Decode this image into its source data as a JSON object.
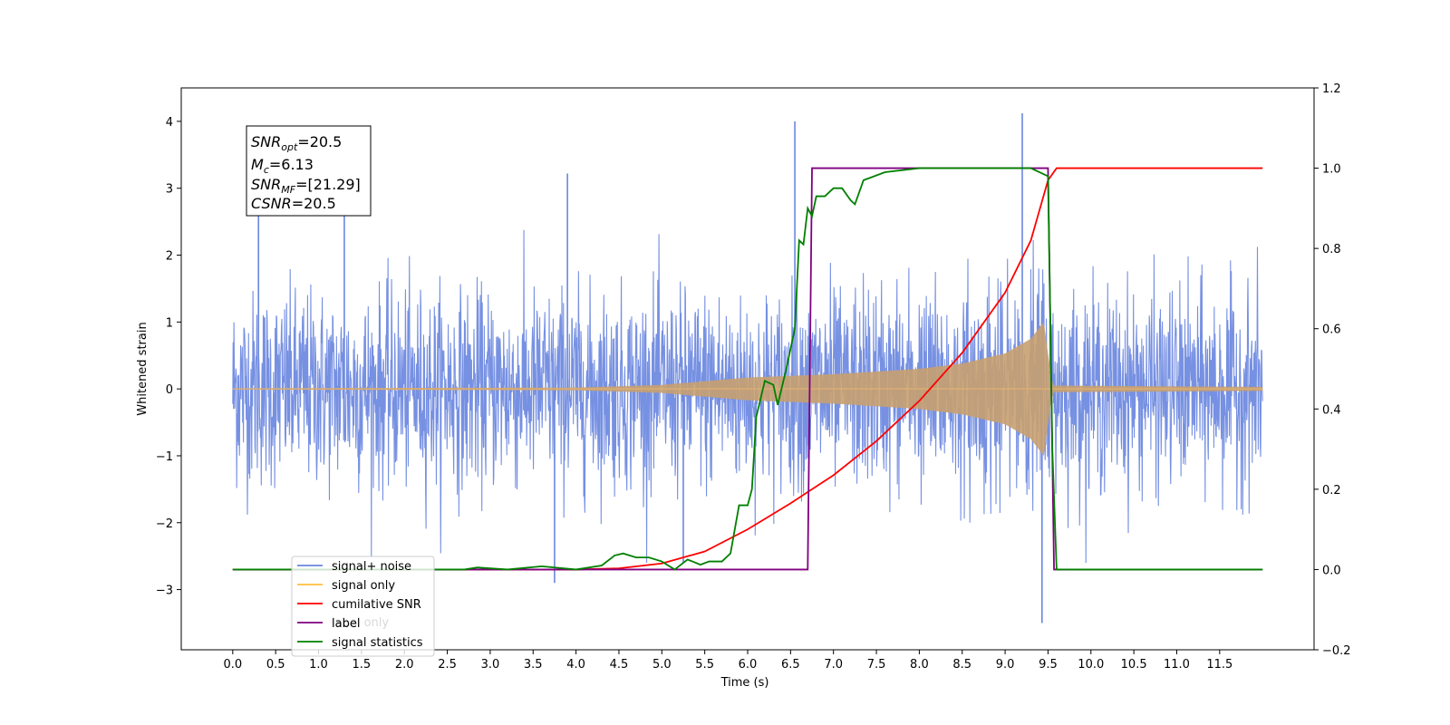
{
  "chart_data": {
    "type": "line",
    "xlabel": "Time (s)",
    "ylabel": "Whitened strain",
    "xlim": [
      -0.6,
      12.6
    ],
    "ylim": [
      -3.9,
      4.5
    ],
    "y2lim": [
      -0.2,
      1.2
    ],
    "x_ticks": [
      "0.0",
      "0.5",
      "1.0",
      "1.5",
      "2.0",
      "2.5",
      "3.0",
      "3.5",
      "4.0",
      "4.5",
      "5.0",
      "5.5",
      "6.0",
      "6.5",
      "7.0",
      "7.5",
      "8.0",
      "8.5",
      "9.0",
      "9.5",
      "10.0",
      "10.5",
      "11.0",
      "11.5"
    ],
    "y_ticks": [
      "−3",
      "−2",
      "−1",
      "0",
      "1",
      "2",
      "3",
      "4"
    ],
    "y2_ticks": [
      "−0.2",
      "0.0",
      "0.2",
      "0.4",
      "0.6",
      "0.8",
      "1.0",
      "1.2"
    ],
    "legend": {
      "placement": "lower-left",
      "entries": [
        {
          "name": "signal+ noise",
          "color": "#6a87e0"
        },
        {
          "name": "signal only",
          "color": "#ffbf40"
        },
        {
          "name": "cumilative SNR",
          "color": "#ff0000"
        },
        {
          "name": "label",
          "color": "#800080"
        },
        {
          "name": "signal statistics",
          "color": "#008000"
        }
      ],
      "hidden_text": "label only"
    },
    "annotation": {
      "snr_opt_label": "SNR",
      "snr_opt_sub": "opt",
      "snr_opt_value": "=20.5",
      "mc_label": "M",
      "mc_sub": "c",
      "mc_value": "=6.13",
      "snr_mf_label": "SNR",
      "snr_mf_sub": "MF",
      "snr_mf_value": "=[21.29]",
      "csnr_label": "CSNR",
      "csnr_value": "=20.5"
    },
    "series": [
      {
        "name": "signal+ noise",
        "axis": "left",
        "description_range": [
          0.0,
          12.0
        ],
        "noise_envelope": 1.2,
        "notable_peaks": [
          [
            6.55,
            4.0
          ],
          [
            9.2,
            4.12
          ],
          [
            3.9,
            3.22
          ],
          [
            1.3,
            2.75
          ],
          [
            0.3,
            2.6
          ],
          [
            9.43,
            -3.5
          ],
          [
            3.75,
            -2.9
          ],
          [
            5.25,
            -2.6
          ]
        ]
      },
      {
        "name": "signal only",
        "axis": "left",
        "envelope": [
          [
            0.0,
            0.01
          ],
          [
            4.0,
            0.02
          ],
          [
            5.0,
            0.06
          ],
          [
            6.0,
            0.17
          ],
          [
            7.0,
            0.22
          ],
          [
            8.0,
            0.3
          ],
          [
            8.5,
            0.38
          ],
          [
            9.0,
            0.53
          ],
          [
            9.3,
            0.75
          ],
          [
            9.45,
            1.0
          ],
          [
            9.55,
            0.05
          ],
          [
            12.0,
            0.03
          ]
        ]
      },
      {
        "name": "cumilative SNR",
        "axis": "right",
        "points": [
          [
            0.0,
            0.0
          ],
          [
            4.0,
            0.0
          ],
          [
            4.5,
            0.003
          ],
          [
            5.0,
            0.015
          ],
          [
            5.5,
            0.045
          ],
          [
            6.0,
            0.1
          ],
          [
            6.5,
            0.165
          ],
          [
            7.0,
            0.235
          ],
          [
            7.5,
            0.32
          ],
          [
            8.0,
            0.42
          ],
          [
            8.5,
            0.54
          ],
          [
            9.0,
            0.69
          ],
          [
            9.3,
            0.82
          ],
          [
            9.5,
            0.97
          ],
          [
            9.6,
            1.0
          ],
          [
            12.0,
            1.0
          ]
        ]
      },
      {
        "name": "label",
        "axis": "right",
        "points": [
          [
            0.0,
            0.0
          ],
          [
            6.7,
            0.0
          ],
          [
            6.75,
            1.0
          ],
          [
            9.5,
            1.0
          ],
          [
            9.57,
            0.0
          ],
          [
            12.0,
            0.0
          ]
        ]
      },
      {
        "name": "signal statistics",
        "axis": "right",
        "points": [
          [
            0.0,
            0.0
          ],
          [
            2.7,
            0.0
          ],
          [
            2.85,
            0.005
          ],
          [
            3.2,
            0.0
          ],
          [
            3.6,
            0.008
          ],
          [
            4.0,
            0.0
          ],
          [
            4.3,
            0.01
          ],
          [
            4.45,
            0.035
          ],
          [
            4.55,
            0.04
          ],
          [
            4.7,
            0.03
          ],
          [
            4.85,
            0.03
          ],
          [
            5.0,
            0.02
          ],
          [
            5.15,
            0.0
          ],
          [
            5.3,
            0.025
          ],
          [
            5.45,
            0.012
          ],
          [
            5.55,
            0.02
          ],
          [
            5.7,
            0.02
          ],
          [
            5.8,
            0.04
          ],
          [
            5.9,
            0.16
          ],
          [
            6.0,
            0.16
          ],
          [
            6.05,
            0.2
          ],
          [
            6.1,
            0.38
          ],
          [
            6.2,
            0.47
          ],
          [
            6.3,
            0.46
          ],
          [
            6.35,
            0.41
          ],
          [
            6.45,
            0.5
          ],
          [
            6.55,
            0.6
          ],
          [
            6.6,
            0.82
          ],
          [
            6.65,
            0.81
          ],
          [
            6.7,
            0.9
          ],
          [
            6.75,
            0.88
          ],
          [
            6.8,
            0.93
          ],
          [
            6.9,
            0.93
          ],
          [
            7.0,
            0.95
          ],
          [
            7.1,
            0.95
          ],
          [
            7.2,
            0.92
          ],
          [
            7.25,
            0.91
          ],
          [
            7.35,
            0.97
          ],
          [
            7.6,
            0.99
          ],
          [
            8.0,
            1.0
          ],
          [
            9.3,
            1.0
          ],
          [
            9.5,
            0.98
          ],
          [
            9.55,
            0.3
          ],
          [
            9.6,
            0.0
          ],
          [
            12.0,
            0.0
          ]
        ]
      }
    ]
  }
}
